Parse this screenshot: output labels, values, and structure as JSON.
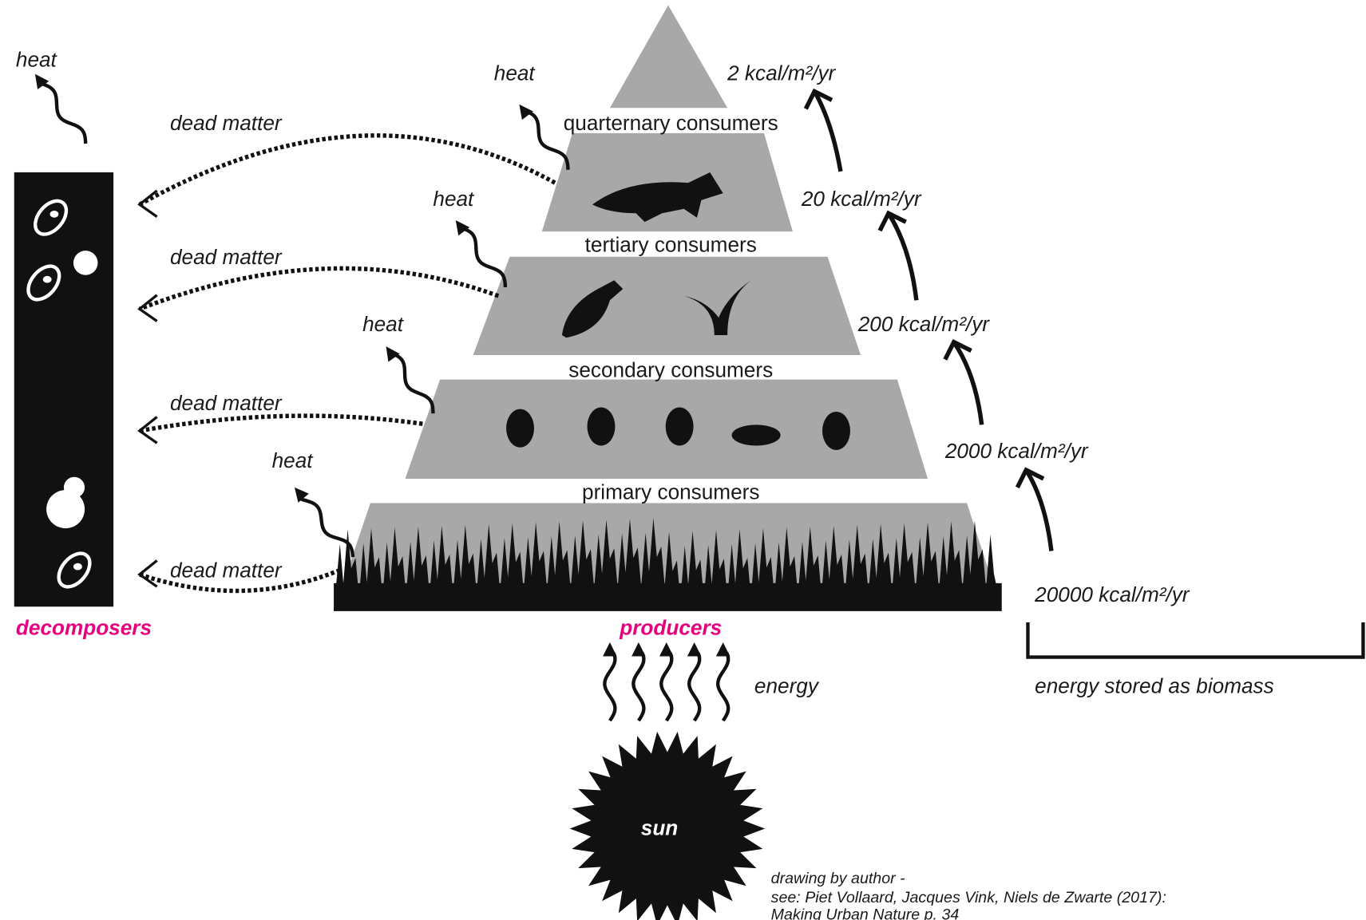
{
  "levels": [
    "quarternary consumers",
    "tertiary consumers",
    "secondary consumers",
    "primary consumers",
    "producers"
  ],
  "energy_values": [
    "2 kcal/m²/yr",
    "20 kcal/m²/yr",
    "200 kcal/m²/yr",
    "2000 kcal/m²/yr",
    "20000 kcal/m²/yr"
  ],
  "heat_labels": [
    "heat",
    "heat",
    "heat",
    "heat",
    "heat"
  ],
  "dead_matter_labels": [
    "dead matter",
    "dead matter",
    "dead matter",
    "dead matter"
  ],
  "decomposers": "decomposers",
  "energy": "energy",
  "energy_stored": "energy stored as biomass",
  "sun": "sun",
  "credit": [
    "drawing by author -",
    "see: Piet Vollaard, Jacques Vink, Niels de Zwarte (2017):",
    "Making Urban Nature p. 34"
  ]
}
